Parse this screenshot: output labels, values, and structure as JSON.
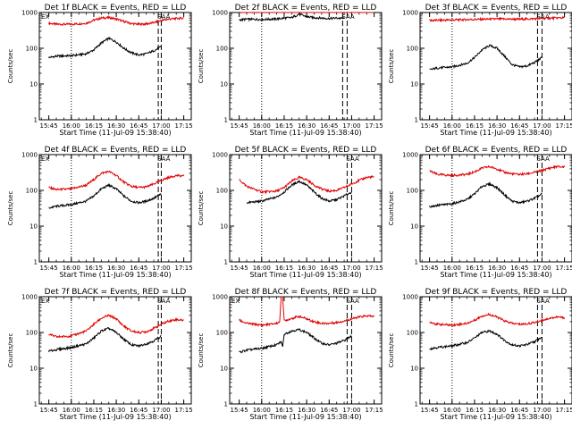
{
  "figure": {
    "rows": 3,
    "cols": 3,
    "colors": {
      "events": "#000000",
      "lld": "#e00000",
      "frame": "#000000"
    }
  },
  "chart_data": [
    {
      "type": "line",
      "title": "Det 1f BLACK = Events, RED = LLD",
      "xlabel": "Start Time (11-Jul-09 15:38:40)",
      "ylabel": "Counts/sec",
      "x_ticks": [
        "15:45",
        "16:00",
        "16:15",
        "16:30",
        "16:45",
        "17:00",
        "17:15"
      ],
      "y_ticks": [
        "1",
        "10",
        "100",
        "1000"
      ],
      "ylim": [
        1,
        1000
      ],
      "yscale": "log",
      "vlines_dotted": [
        "15:38:40",
        "16:00"
      ],
      "vlines_dashed": [
        "16:58",
        "17:00"
      ],
      "annotations": [
        "EX",
        "SAA"
      ],
      "series": [
        {
          "color": "red",
          "x": [
            "15:45",
            "15:50",
            "16:00",
            "16:10",
            "16:15",
            "16:20",
            "16:25",
            "16:30",
            "16:35",
            "16:40",
            "16:45",
            "16:50",
            "16:55",
            "17:00",
            "17:05",
            "17:10",
            "17:15"
          ],
          "y": [
            500,
            470,
            470,
            500,
            610,
            700,
            720,
            660,
            560,
            490,
            470,
            480,
            520,
            600,
            650,
            680,
            700
          ]
        },
        {
          "color": "black",
          "x": [
            "15:45",
            "15:50",
            "16:00",
            "16:10",
            "16:15",
            "16:20",
            "16:25",
            "16:30",
            "16:35",
            "16:40",
            "16:45",
            "16:50",
            "16:55",
            "17:00"
          ],
          "y": [
            55,
            60,
            62,
            70,
            90,
            140,
            190,
            150,
            100,
            75,
            65,
            70,
            85,
            110
          ]
        }
      ]
    },
    {
      "type": "line",
      "title": "Det 2f BLACK = Events, RED = LLD",
      "xlabel": "Start Time (11-Jul-09 15:38:40)",
      "ylabel": "Counts/sec",
      "x_ticks": [
        "15:45",
        "16:00",
        "16:15",
        "16:30",
        "16:45",
        "17:00",
        "17:15"
      ],
      "y_ticks": [
        "1",
        "10",
        "100",
        "1000"
      ],
      "ylim": [
        1,
        1000
      ],
      "yscale": "log",
      "vlines_dotted": [
        "15:38:40",
        "16:00"
      ],
      "vlines_dashed": [
        "16:54",
        "16:57"
      ],
      "annotations": [
        "SAA"
      ],
      "series": [
        {
          "color": "red",
          "x": [
            "15:45",
            "16:00",
            "16:15",
            "16:30",
            "16:45",
            "17:00",
            "17:15"
          ],
          "y": [
            1050,
            1050,
            1100,
            1100,
            1050,
            1080,
            1150
          ]
        },
        {
          "color": "black",
          "x": [
            "15:45",
            "15:50",
            "16:00",
            "16:10",
            "16:15",
            "16:20",
            "16:25",
            "16:30",
            "16:35",
            "16:40",
            "16:45",
            "16:50",
            "16:55"
          ],
          "y": [
            620,
            650,
            640,
            660,
            700,
            720,
            900,
            760,
            720,
            700,
            680,
            700,
            680
          ]
        }
      ]
    },
    {
      "type": "line",
      "title": "Det 3f BLACK = Events, RED = LLD",
      "xlabel": "Start Time (11-Jul-09 15:38:40)",
      "ylabel": "Counts/sec",
      "x_ticks": [
        "15:45",
        "16:00",
        "16:15",
        "16:30",
        "16:45",
        "17:00",
        "17:15"
      ],
      "y_ticks": [
        "1",
        "10",
        "100",
        "1000"
      ],
      "ylim": [
        1,
        1000
      ],
      "yscale": "log",
      "vlines_dotted": [
        "15:38:40",
        "16:00"
      ],
      "vlines_dashed": [
        "16:57",
        "17:00"
      ],
      "annotations": [
        "SAA"
      ],
      "series": [
        {
          "color": "red",
          "x": [
            "15:45",
            "16:00",
            "16:15",
            "16:30",
            "16:45",
            "17:00",
            "17:15"
          ],
          "y": [
            600,
            620,
            640,
            660,
            650,
            680,
            720
          ]
        },
        {
          "color": "black",
          "x": [
            "15:45",
            "15:50",
            "16:00",
            "16:10",
            "16:15",
            "16:20",
            "16:25",
            "16:30",
            "16:35",
            "16:40",
            "16:45",
            "16:50",
            "16:55",
            "17:00"
          ],
          "y": [
            25,
            28,
            30,
            38,
            55,
            90,
            120,
            100,
            60,
            35,
            30,
            32,
            40,
            55
          ]
        }
      ]
    },
    {
      "type": "line",
      "title": "Det 4f BLACK = Events, RED = LLD",
      "xlabel": "Start Time (11-Jul-09 15:38:40)",
      "ylabel": "Counts/sec",
      "x_ticks": [
        "15:45",
        "16:00",
        "16:15",
        "16:30",
        "16:45",
        "17:00",
        "17:15"
      ],
      "y_ticks": [
        "1",
        "10",
        "100",
        "1000"
      ],
      "ylim": [
        1,
        1000
      ],
      "yscale": "log",
      "vlines_dotted": [
        "15:38:40",
        "16:00"
      ],
      "vlines_dashed": [
        "16:58",
        "17:00"
      ],
      "annotations": [
        "EX",
        "SAA"
      ],
      "series": [
        {
          "color": "red",
          "x": [
            "15:45",
            "15:50",
            "16:00",
            "16:10",
            "16:15",
            "16:20",
            "16:25",
            "16:30",
            "16:35",
            "16:40",
            "16:45",
            "16:50",
            "16:55",
            "17:00",
            "17:05",
            "17:10",
            "17:15"
          ],
          "y": [
            120,
            105,
            110,
            140,
            200,
            300,
            340,
            260,
            170,
            130,
            120,
            125,
            150,
            190,
            230,
            260,
            250
          ]
        },
        {
          "color": "black",
          "x": [
            "15:45",
            "15:50",
            "16:00",
            "16:10",
            "16:15",
            "16:20",
            "16:25",
            "16:30",
            "16:35",
            "16:40",
            "16:45",
            "16:50",
            "16:55",
            "17:00"
          ],
          "y": [
            32,
            36,
            40,
            50,
            70,
            110,
            140,
            110,
            70,
            50,
            45,
            50,
            60,
            80
          ]
        }
      ]
    },
    {
      "type": "line",
      "title": "Det 5f BLACK = Events, RED = LLD",
      "xlabel": "Start Time (11-Jul-09 15:38:40)",
      "ylabel": "Counts/sec",
      "x_ticks": [
        "15:45",
        "16:00",
        "16:15",
        "16:30",
        "16:45",
        "17:00",
        "17:15"
      ],
      "y_ticks": [
        "1",
        "10",
        "100",
        "1000"
      ],
      "ylim": [
        1,
        1000
      ],
      "yscale": "log",
      "vlines_dotted": [
        "15:38:40",
        "16:00"
      ],
      "vlines_dashed": [
        "16:57",
        "17:00"
      ],
      "annotations": [
        "SAA"
      ],
      "series": [
        {
          "color": "red",
          "x": [
            "15:45",
            "15:50",
            "16:00",
            "16:10",
            "16:15",
            "16:20",
            "16:25",
            "16:30",
            "16:35",
            "16:40",
            "16:45",
            "16:50",
            "16:55",
            "17:00",
            "17:05",
            "17:10",
            "17:15"
          ],
          "y": [
            200,
            130,
            90,
            95,
            120,
            180,
            230,
            200,
            140,
            110,
            95,
            100,
            120,
            150,
            190,
            230,
            240
          ]
        },
        {
          "color": "black",
          "x": [
            "15:50",
            "16:00",
            "16:10",
            "16:15",
            "16:20",
            "16:25",
            "16:30",
            "16:35",
            "16:40",
            "16:45",
            "16:50",
            "16:55",
            "17:00"
          ],
          "y": [
            45,
            50,
            65,
            90,
            140,
            180,
            140,
            90,
            60,
            50,
            55,
            70,
            90
          ]
        }
      ]
    },
    {
      "type": "line",
      "title": "Det 6f BLACK = Events, RED = LLD",
      "xlabel": "Start Time (11-Jul-09 15:38:40)",
      "ylabel": "Counts/sec",
      "x_ticks": [
        "15:45",
        "16:00",
        "16:15",
        "16:30",
        "16:45",
        "17:00",
        "17:15"
      ],
      "y_ticks": [
        "1",
        "10",
        "100",
        "1000"
      ],
      "ylim": [
        1,
        1000
      ],
      "yscale": "log",
      "vlines_dotted": [
        "15:38:40",
        "16:00"
      ],
      "vlines_dashed": [
        "16:57",
        "17:00"
      ],
      "annotations": [
        "SAA"
      ],
      "series": [
        {
          "color": "red",
          "x": [
            "15:45",
            "15:50",
            "16:00",
            "16:10",
            "16:15",
            "16:20",
            "16:25",
            "16:30",
            "16:35",
            "16:40",
            "16:45",
            "16:50",
            "16:55",
            "17:00",
            "17:05",
            "17:10",
            "17:15"
          ],
          "y": [
            350,
            280,
            260,
            280,
            330,
            420,
            460,
            400,
            320,
            290,
            280,
            290,
            320,
            360,
            420,
            460,
            450
          ]
        },
        {
          "color": "black",
          "x": [
            "15:45",
            "15:50",
            "16:00",
            "16:10",
            "16:15",
            "16:20",
            "16:25",
            "16:30",
            "16:35",
            "16:40",
            "16:45",
            "16:50",
            "16:55",
            "17:00"
          ],
          "y": [
            35,
            38,
            42,
            55,
            80,
            130,
            150,
            120,
            75,
            50,
            45,
            50,
            60,
            80
          ]
        }
      ]
    },
    {
      "type": "line",
      "title": "Det 7f BLACK = Events, RED = LLD",
      "xlabel": "Start Time (11-Jul-09 15:38:40)",
      "ylabel": "Counts/sec",
      "x_ticks": [
        "15:45",
        "16:00",
        "16:15",
        "16:30",
        "16:45",
        "17:00",
        "17:15"
      ],
      "y_ticks": [
        "1",
        "10",
        "100",
        "1000"
      ],
      "ylim": [
        1,
        1000
      ],
      "yscale": "log",
      "vlines_dotted": [
        "15:38:40",
        "16:00"
      ],
      "vlines_dashed": [
        "16:58",
        "17:00"
      ],
      "annotations": [
        "EX",
        "SAA"
      ],
      "series": [
        {
          "color": "red",
          "x": [
            "15:45",
            "15:50",
            "16:00",
            "16:10",
            "16:15",
            "16:20",
            "16:25",
            "16:30",
            "16:35",
            "16:40",
            "16:45",
            "16:50",
            "16:55",
            "17:00",
            "17:05",
            "17:10",
            "17:15"
          ],
          "y": [
            90,
            75,
            80,
            110,
            170,
            250,
            300,
            240,
            150,
            110,
            100,
            105,
            130,
            170,
            210,
            230,
            220
          ]
        },
        {
          "color": "black",
          "x": [
            "15:45",
            "15:50",
            "16:00",
            "16:10",
            "16:15",
            "16:20",
            "16:25",
            "16:30",
            "16:35",
            "16:40",
            "16:45",
            "16:50",
            "16:55",
            "17:00"
          ],
          "y": [
            30,
            33,
            38,
            48,
            70,
            110,
            130,
            100,
            65,
            45,
            42,
            48,
            58,
            80
          ]
        }
      ]
    },
    {
      "type": "line",
      "title": "Det 8f BLACK = Events, RED = LLD",
      "xlabel": "Start Time (11-Jul-09 15:38:40)",
      "ylabel": "Counts/sec",
      "x_ticks": [
        "15:45",
        "16:00",
        "16:15",
        "16:30",
        "16:45",
        "17:00",
        "17:15"
      ],
      "y_ticks": [
        "1",
        "10",
        "100",
        "1000"
      ],
      "ylim": [
        1,
        1000
      ],
      "yscale": "log",
      "vlines_dotted": [
        "15:38:40",
        "16:00"
      ],
      "vlines_dashed": [
        "16:57",
        "17:00"
      ],
      "annotations": [
        "EX",
        "SAA"
      ],
      "series": [
        {
          "color": "red",
          "x": [
            "15:45",
            "15:50",
            "16:00",
            "16:10",
            "16:12",
            "16:13",
            "16:14",
            "16:15",
            "16:20",
            "16:25",
            "16:30",
            "16:35",
            "16:40",
            "16:45",
            "16:50",
            "16:55",
            "17:00",
            "17:05",
            "17:10",
            "17:15"
          ],
          "y": [
            220,
            180,
            160,
            180,
            200,
            1000,
            1000,
            210,
            250,
            280,
            240,
            200,
            180,
            180,
            190,
            210,
            240,
            270,
            290,
            280
          ]
        },
        {
          "color": "black",
          "x": [
            "15:45",
            "15:50",
            "16:00",
            "16:10",
            "16:13",
            "16:14",
            "16:15",
            "16:20",
            "16:25",
            "16:30",
            "16:35",
            "16:40",
            "16:45",
            "16:50",
            "16:55",
            "17:00"
          ],
          "y": [
            28,
            32,
            36,
            45,
            55,
            40,
            90,
            110,
            120,
            100,
            70,
            50,
            45,
            50,
            60,
            80
          ]
        }
      ]
    },
    {
      "type": "line",
      "title": "Det 9f BLACK = Events, RED = LLD",
      "xlabel": "Start Time (11-Jul-09 15:38:40)",
      "ylabel": "Counts/sec",
      "x_ticks": [
        "15:45",
        "16:00",
        "16:15",
        "16:30",
        "16:45",
        "17:00",
        "17:15"
      ],
      "y_ticks": [
        "1",
        "10",
        "100",
        "1000"
      ],
      "ylim": [
        1,
        1000
      ],
      "yscale": "log",
      "vlines_dotted": [
        "15:38:40",
        "16:00"
      ],
      "vlines_dashed": [
        "16:57",
        "17:00"
      ],
      "annotations": [
        "SAA"
      ],
      "series": [
        {
          "color": "red",
          "x": [
            "15:45",
            "15:50",
            "16:00",
            "16:10",
            "16:15",
            "16:20",
            "16:25",
            "16:30",
            "16:35",
            "16:40",
            "16:45",
            "16:50",
            "16:55",
            "17:00",
            "17:05",
            "17:10",
            "17:15"
          ],
          "y": [
            200,
            170,
            160,
            180,
            220,
            290,
            320,
            270,
            210,
            180,
            170,
            175,
            190,
            220,
            250,
            270,
            260
          ]
        },
        {
          "color": "black",
          "x": [
            "15:45",
            "15:50",
            "16:00",
            "16:10",
            "16:15",
            "16:20",
            "16:25",
            "16:30",
            "16:35",
            "16:40",
            "16:45",
            "16:50",
            "16:55",
            "17:00"
          ],
          "y": [
            35,
            38,
            42,
            52,
            70,
            100,
            110,
            90,
            60,
            45,
            42,
            46,
            55,
            75
          ]
        }
      ]
    }
  ]
}
